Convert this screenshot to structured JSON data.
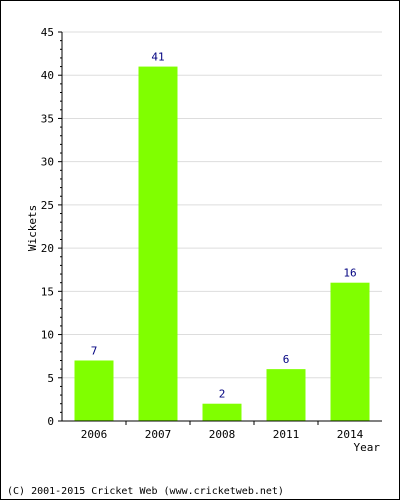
{
  "chart_data": {
    "type": "bar",
    "categories": [
      "2006",
      "2007",
      "2008",
      "2011",
      "2014"
    ],
    "values": [
      7,
      41,
      2,
      6,
      16
    ],
    "data_labels": [
      "7",
      "41",
      "2",
      "6",
      "16"
    ],
    "xlabel": "Year",
    "ylabel": "Wickets",
    "ylim": [
      0,
      45
    ],
    "yticks": [
      0,
      5,
      10,
      15,
      20,
      25,
      30,
      35,
      40,
      45
    ],
    "grid": true,
    "legend": "none",
    "bar_color": "#80ff00",
    "grid_color": "#dddddd",
    "label_color": "#000080"
  },
  "footer": {
    "copyright": "(C) 2001-2015 Cricket Web (www.cricketweb.net)"
  }
}
